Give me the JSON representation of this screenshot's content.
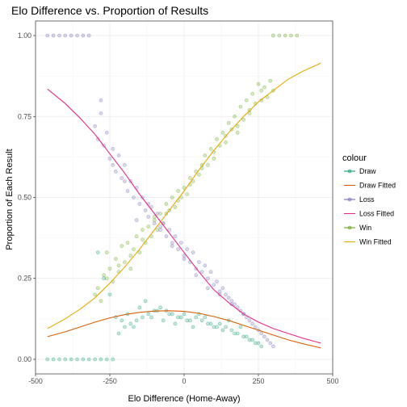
{
  "chart_data": {
    "type": "scatter",
    "title": "Elo Difference vs. Proportion of Results",
    "xlabel": "Elo Difference (Home-Away)",
    "ylabel": "Proportion of Each Result",
    "xlim": [
      -500,
      500
    ],
    "ylim": [
      0,
      1
    ],
    "xticks": [
      -500,
      -250,
      0,
      250,
      500
    ],
    "xtick_labels": [
      "-500",
      "-250",
      "0",
      "250",
      "500"
    ],
    "yticks": [
      0,
      0.25,
      0.5,
      0.75,
      1
    ],
    "ytick_labels": [
      "0.00",
      "0.25",
      "0.50",
      "0.75",
      "1.00"
    ],
    "grid": true,
    "legend": {
      "title": "colour",
      "placement": "right",
      "entries": [
        "Draw",
        "Draw Fitted",
        "Loss",
        "Loss Fitted",
        "Win",
        "Win Fitted"
      ]
    },
    "colors": {
      "Draw": "#1b9e77",
      "Draw Fitted": "#d95f02",
      "Loss": "#7570b3",
      "Loss Fitted": "#e7298a",
      "Win": "#66a61e",
      "Win Fitted": "#e6ab02"
    },
    "series": [
      {
        "name": "Win Fitted",
        "kind": "line",
        "x": [
          -460,
          -400,
          -350,
          -300,
          -250,
          -200,
          -150,
          -100,
          -50,
          0,
          50,
          100,
          150,
          200,
          250,
          300,
          350,
          400,
          460
        ],
        "y": [
          0.095,
          0.125,
          0.155,
          0.19,
          0.235,
          0.285,
          0.34,
          0.4,
          0.46,
          0.52,
          0.585,
          0.645,
          0.7,
          0.75,
          0.795,
          0.83,
          0.865,
          0.89,
          0.915
        ]
      },
      {
        "name": "Loss Fitted",
        "kind": "line",
        "x": [
          -460,
          -400,
          -350,
          -300,
          -250,
          -200,
          -150,
          -100,
          -50,
          0,
          50,
          100,
          150,
          200,
          250,
          300,
          350,
          400,
          460
        ],
        "y": [
          0.835,
          0.79,
          0.745,
          0.695,
          0.635,
          0.575,
          0.51,
          0.45,
          0.39,
          0.33,
          0.27,
          0.215,
          0.175,
          0.14,
          0.115,
          0.095,
          0.08,
          0.065,
          0.05
        ]
      },
      {
        "name": "Draw Fitted",
        "kind": "line",
        "x": [
          -460,
          -400,
          -350,
          -300,
          -250,
          -200,
          -150,
          -100,
          -50,
          0,
          50,
          100,
          150,
          200,
          250,
          300,
          350,
          400,
          460
        ],
        "y": [
          0.07,
          0.085,
          0.1,
          0.115,
          0.128,
          0.138,
          0.145,
          0.149,
          0.15,
          0.148,
          0.142,
          0.132,
          0.12,
          0.105,
          0.09,
          0.075,
          0.06,
          0.048,
          0.035
        ]
      },
      {
        "name": "Win",
        "kind": "points",
        "x": [
          -300,
          -290,
          -280,
          -270,
          -260,
          -250,
          -240,
          -230,
          -220,
          -210,
          -200,
          -190,
          -180,
          -170,
          -160,
          -150,
          -140,
          -130,
          -120,
          -110,
          -100,
          -90,
          -80,
          -70,
          -60,
          -50,
          -40,
          -30,
          -20,
          -10,
          0,
          10,
          20,
          30,
          40,
          50,
          60,
          70,
          80,
          90,
          100,
          110,
          120,
          130,
          140,
          150,
          160,
          170,
          180,
          190,
          200,
          210,
          220,
          230,
          240,
          250,
          260,
          270,
          280,
          290,
          300,
          -260,
          -220,
          -180,
          -140,
          -100,
          -60,
          -20,
          20,
          60,
          100,
          140,
          180,
          220,
          260,
          300,
          320,
          340,
          360,
          380
        ],
        "y": [
          0.2,
          0.22,
          0.18,
          0.26,
          0.33,
          0.28,
          0.24,
          0.31,
          0.27,
          0.35,
          0.3,
          0.36,
          0.28,
          0.34,
          0.38,
          0.33,
          0.4,
          0.36,
          0.41,
          0.38,
          0.44,
          0.4,
          0.45,
          0.42,
          0.48,
          0.46,
          0.5,
          0.47,
          0.52,
          0.5,
          0.53,
          0.51,
          0.56,
          0.55,
          0.58,
          0.57,
          0.6,
          0.63,
          0.6,
          0.65,
          0.64,
          0.68,
          0.66,
          0.7,
          0.69,
          0.73,
          0.71,
          0.75,
          0.72,
          0.78,
          0.74,
          0.8,
          0.76,
          0.82,
          0.79,
          0.85,
          0.8,
          0.84,
          0.81,
          0.86,
          0.83,
          0.25,
          0.29,
          0.32,
          0.37,
          0.43,
          0.45,
          0.49,
          0.54,
          0.59,
          0.62,
          0.67,
          0.7,
          0.77,
          0.83,
          1.0,
          1.0,
          1.0,
          1.0,
          1.0
        ]
      },
      {
        "name": "Loss",
        "kind": "points",
        "x": [
          -460,
          -440,
          -420,
          -400,
          -380,
          -360,
          -340,
          -320,
          -300,
          -290,
          -280,
          -270,
          -260,
          -250,
          -240,
          -230,
          -220,
          -210,
          -200,
          -190,
          -180,
          -170,
          -160,
          -150,
          -140,
          -130,
          -120,
          -110,
          -100,
          -90,
          -80,
          -70,
          -60,
          -50,
          -40,
          -30,
          -20,
          -10,
          0,
          10,
          20,
          30,
          40,
          50,
          60,
          70,
          80,
          90,
          100,
          110,
          120,
          130,
          140,
          150,
          160,
          170,
          180,
          190,
          200,
          210,
          220,
          230,
          240,
          250,
          260,
          270,
          280,
          290,
          300,
          -280,
          -240,
          -200,
          -160,
          -120,
          -80,
          -40,
          0,
          40,
          80,
          120,
          160,
          200
        ],
        "y": [
          1.0,
          1.0,
          1.0,
          1.0,
          1.0,
          1.0,
          1.0,
          1.0,
          0.72,
          0.68,
          0.76,
          0.66,
          0.7,
          0.62,
          0.65,
          0.58,
          0.63,
          0.56,
          0.6,
          0.52,
          0.55,
          0.5,
          0.53,
          0.48,
          0.5,
          0.46,
          0.44,
          0.47,
          0.42,
          0.45,
          0.4,
          0.42,
          0.38,
          0.4,
          0.36,
          0.38,
          0.34,
          0.36,
          0.32,
          0.34,
          0.3,
          0.33,
          0.28,
          0.3,
          0.27,
          0.29,
          0.25,
          0.27,
          0.23,
          0.24,
          0.21,
          0.22,
          0.2,
          0.19,
          0.18,
          0.17,
          0.16,
          0.15,
          0.14,
          0.13,
          0.12,
          0.11,
          0.1,
          0.09,
          0.08,
          0.07,
          0.06,
          0.05,
          0.04,
          0.8,
          0.6,
          0.55,
          0.43,
          0.48,
          0.41,
          0.35,
          0.31,
          0.26,
          0.22,
          0.2,
          0.17,
          0.14
        ]
      },
      {
        "name": "Draw",
        "kind": "points",
        "x": [
          -460,
          -440,
          -420,
          -400,
          -380,
          -360,
          -340,
          -320,
          -300,
          -280,
          -260,
          -240,
          -220,
          -200,
          -180,
          -160,
          -140,
          -120,
          -100,
          -80,
          -60,
          -40,
          -20,
          0,
          20,
          40,
          60,
          80,
          100,
          120,
          140,
          160,
          180,
          200,
          220,
          240,
          260,
          -290,
          -270,
          -250,
          -230,
          -210,
          -190,
          -170,
          -150,
          -130,
          -110,
          -90,
          -70,
          -50,
          -30,
          -10,
          10,
          30,
          50,
          70,
          90,
          110,
          130,
          150,
          170,
          190,
          210,
          230,
          250
        ],
        "y": [
          0.0,
          0.0,
          0.0,
          0.0,
          0.0,
          0.0,
          0.0,
          0.0,
          0.0,
          0.0,
          0.0,
          0.0,
          0.08,
          0.1,
          0.11,
          0.12,
          0.13,
          0.14,
          0.15,
          0.16,
          0.15,
          0.14,
          0.13,
          0.14,
          0.12,
          0.13,
          0.12,
          0.11,
          0.1,
          0.11,
          0.1,
          0.09,
          0.08,
          0.07,
          0.06,
          0.05,
          0.04,
          0.33,
          0.25,
          0.2,
          0.13,
          0.12,
          0.14,
          0.1,
          0.16,
          0.18,
          0.13,
          0.15,
          0.12,
          0.14,
          0.11,
          0.13,
          0.12,
          0.1,
          0.14,
          0.13,
          0.11,
          0.1,
          0.09,
          0.12,
          0.08,
          0.1,
          0.07,
          0.06,
          0.05
        ]
      }
    ]
  }
}
